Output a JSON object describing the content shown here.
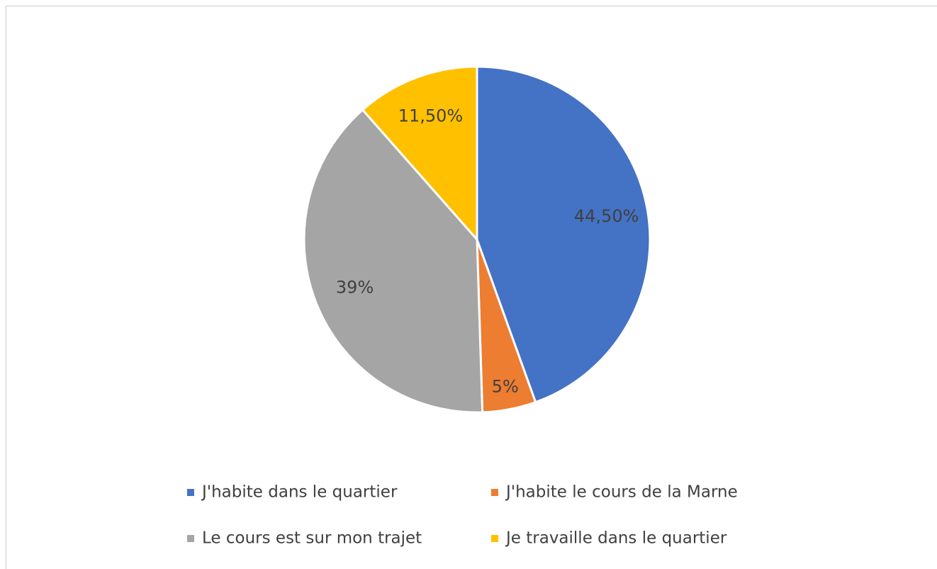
{
  "chart_data": {
    "type": "pie",
    "categories": [
      "J'habite dans le quartier",
      "J'habite le cours de la Marne",
      "Le cours est sur mon trajet",
      "Je travaille dans le quartier"
    ],
    "values": [
      44.5,
      5,
      39,
      11.5
    ],
    "value_labels": [
      "44,50%",
      "5%",
      "39%",
      "11,50%"
    ],
    "colors": [
      "#4472c4",
      "#ed7d31",
      "#a5a5a5",
      "#ffc000"
    ],
    "legend": "bottom"
  }
}
